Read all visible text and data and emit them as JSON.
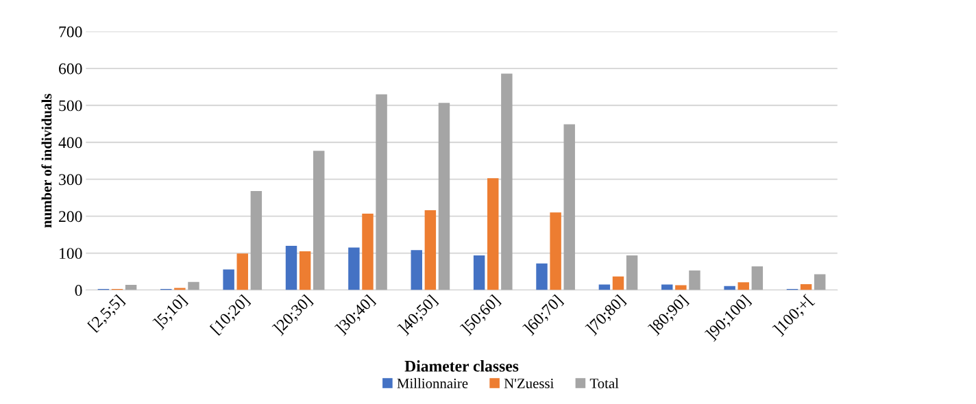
{
  "chart_data": {
    "type": "bar",
    "xlabel": "Diameter classes",
    "ylabel": "number of individuals",
    "categories": [
      "[2,5;5]",
      "]5;10]",
      "[10;20]",
      "]20;30]",
      "]30;40]",
      "]40;50]",
      "]50;60]",
      "]60;70]",
      "]70;80]",
      "]80;90]",
      "]90;100]",
      "]100;+["
    ],
    "series": [
      {
        "name": "Millionnaire",
        "color": "#4472c4",
        "values": [
          3,
          3,
          56,
          120,
          115,
          108,
          94,
          72,
          15,
          15,
          11,
          3
        ]
      },
      {
        "name": "N'Zuessi",
        "color": "#ed7d31",
        "values": [
          3,
          6,
          99,
          105,
          207,
          216,
          303,
          210,
          37,
          13,
          21,
          16
        ]
      },
      {
        "name": "Total",
        "color": "#a5a5a5",
        "values": [
          14,
          22,
          268,
          377,
          530,
          507,
          586,
          449,
          94,
          53,
          64,
          43
        ]
      }
    ],
    "ylim": [
      0,
      700
    ],
    "yticks": [
      0,
      100,
      200,
      300,
      400,
      500,
      600,
      700
    ],
    "grid": "y",
    "legend": "bottom"
  }
}
